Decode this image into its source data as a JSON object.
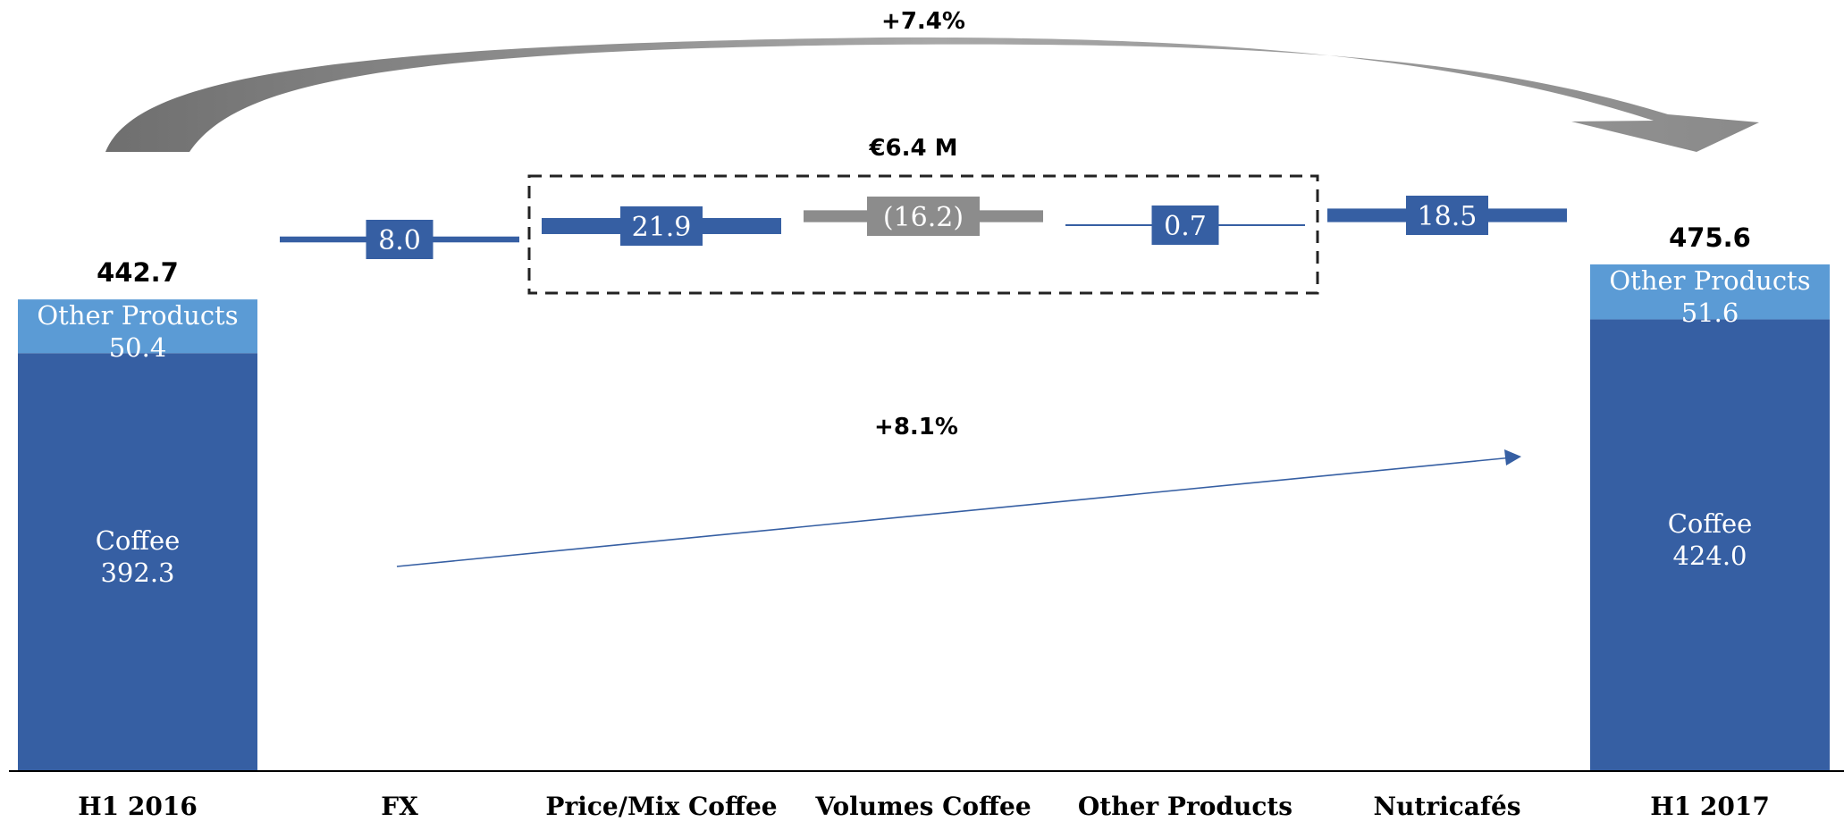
{
  "chart_data": {
    "type": "bar",
    "subtype": "waterfall",
    "unit": "€M",
    "categories": [
      "H1 2016",
      "FX",
      "Price/Mix Coffee",
      "Volumes Coffee",
      "Other Products",
      "Nutricafés",
      "H1 2017"
    ],
    "totals": [
      {
        "category": "H1 2016",
        "total": 442.7,
        "total_label": "442.7",
        "segments": [
          {
            "name": "Coffee",
            "value": 392.3,
            "label": "392.3"
          },
          {
            "name": "Other Products",
            "value": 50.4,
            "label": "50.4"
          }
        ]
      },
      {
        "category": "H1 2017",
        "total": 475.6,
        "total_label": "475.6",
        "segments": [
          {
            "name": "Coffee",
            "value": 424.0,
            "label": "424.0"
          },
          {
            "name": "Other Products",
            "value": 51.6,
            "label": "51.6"
          }
        ]
      }
    ],
    "deltas": [
      {
        "category": "FX",
        "value": 8.0,
        "label": "8.0"
      },
      {
        "category": "Price/Mix Coffee",
        "value": 21.9,
        "label": "21.9"
      },
      {
        "category": "Volumes Coffee",
        "value": -16.2,
        "label": "(16.2)"
      },
      {
        "category": "Other Products",
        "value": 0.7,
        "label": "0.7"
      },
      {
        "category": "Nutricafés",
        "value": 18.5,
        "label": "18.5"
      }
    ],
    "annotations": {
      "overall_growth": "+7.4%",
      "organic_box": "€6.4 M",
      "organic_growth": "+8.1%"
    },
    "colors": {
      "coffee": "#365FA3",
      "other_products": "#5B9BD5",
      "increase": "#365FA3",
      "decrease": "#8C8C8C",
      "arc": "#8C8C8C",
      "text_dark": "#000000",
      "text_light": "#ffffff"
    }
  }
}
